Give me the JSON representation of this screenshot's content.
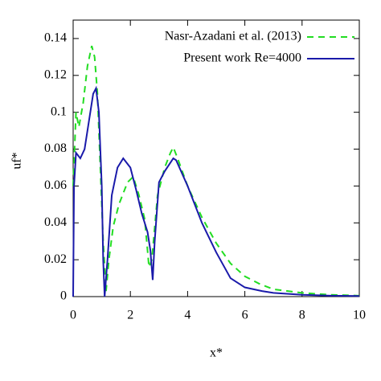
{
  "chart_data": {
    "type": "line",
    "xlabel": "x*",
    "ylabel": "uf*",
    "xlim": [
      0,
      10
    ],
    "xticks": [
      0,
      2,
      4,
      6,
      8,
      10
    ],
    "ylim": [
      0,
      0.15
    ],
    "yticks": [
      0,
      0.02,
      0.04,
      0.06,
      0.08,
      0.1,
      0.12,
      0.14
    ],
    "legend": "upper right",
    "series": [
      {
        "name": "Nasr-Azadani et al. (2013)",
        "color": "#22dd22",
        "dashed": true,
        "x": [
          0,
          0.1,
          0.2,
          0.35,
          0.5,
          0.65,
          0.75,
          0.85,
          0.95,
          1.05,
          1.15,
          1.25,
          1.4,
          1.6,
          1.9,
          2.1,
          2.3,
          2.5,
          2.6,
          2.65,
          2.75,
          2.95,
          3.2,
          3.4,
          3.5,
          3.65,
          4,
          4.5,
          5,
          5.5,
          6,
          6.5,
          7,
          8,
          9,
          10
        ],
        "values": [
          0.06,
          0.1,
          0.092,
          0.105,
          0.125,
          0.136,
          0.13,
          0.11,
          0.07,
          0.03,
          0.003,
          0.02,
          0.038,
          0.05,
          0.062,
          0.065,
          0.055,
          0.042,
          0.025,
          0.016,
          0.02,
          0.055,
          0.07,
          0.078,
          0.081,
          0.075,
          0.06,
          0.043,
          0.029,
          0.018,
          0.011,
          0.007,
          0.004,
          0.002,
          0.001,
          0.0005
        ]
      },
      {
        "name": "Present work Re=4000",
        "color": "#1a1aaa",
        "dashed": false,
        "x": [
          0,
          0.03,
          0.1,
          0.25,
          0.4,
          0.55,
          0.7,
          0.8,
          0.9,
          1.0,
          1.05,
          1.1,
          1.2,
          1.35,
          1.55,
          1.75,
          2.0,
          2.2,
          2.4,
          2.6,
          2.7,
          2.78,
          2.85,
          3.0,
          3.2,
          3.5,
          3.6,
          4,
          4.5,
          5,
          5.5,
          6,
          6.6,
          7,
          8,
          9,
          10
        ],
        "values": [
          0,
          0.06,
          0.078,
          0.075,
          0.08,
          0.095,
          0.11,
          0.113,
          0.1,
          0.06,
          0.02,
          0,
          0.02,
          0.055,
          0.07,
          0.075,
          0.07,
          0.058,
          0.045,
          0.035,
          0.025,
          0.009,
          0.03,
          0.062,
          0.068,
          0.075,
          0.074,
          0.06,
          0.04,
          0.024,
          0.01,
          0.005,
          0.003,
          0.002,
          0.001,
          0.0005,
          0.0003
        ]
      }
    ]
  }
}
